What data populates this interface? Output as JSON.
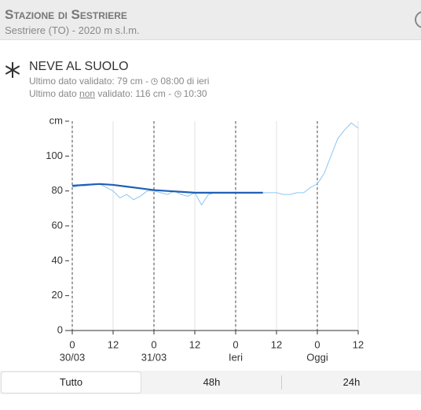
{
  "header": {
    "title": "Stazione di Sestriere",
    "subtitle": "Sestriere (TO) - 2020 m s.l.m."
  },
  "section": {
    "title": "NEVE AL SUOLO",
    "line1": {
      "text": "Ultimo dato validato: 79 cm - ",
      "time": "08:00 di ieri"
    },
    "line2": {
      "prefix": "Ultimo dato ",
      "underlined": "non",
      "text": " validato: 116 cm - ",
      "time": "10:30"
    }
  },
  "chart_data": {
    "type": "line",
    "grid": true,
    "xlim": [
      0,
      84
    ],
    "xticks": [
      0,
      12,
      {
        "value": 24,
        "label": "0"
      },
      {
        "value": 36,
        "label": "12"
      },
      {
        "value": 48,
        "label": "0"
      },
      {
        "value": 60,
        "label": "12"
      },
      {
        "value": 72,
        "label": "0"
      },
      {
        "value": 84,
        "label": "12"
      }
    ],
    "x_day_labels": [
      {
        "value": 0,
        "label": "30/03"
      },
      {
        "value": 24,
        "label": "31/03"
      },
      {
        "value": 48,
        "label": "Ieri"
      },
      {
        "value": 72,
        "label": "Oggi"
      }
    ],
    "ylim": [
      0,
      120
    ],
    "yticks": [
      0,
      20,
      40,
      60,
      80,
      100,
      {
        "value": 120,
        "label": "cm"
      }
    ],
    "series": [
      {
        "color": "#8cc6f2",
        "width": 1,
        "x": [
          0,
          2,
          4,
          6,
          8,
          10,
          12,
          14,
          16,
          18,
          20,
          22,
          24,
          26,
          28,
          30,
          32,
          34,
          36,
          38,
          40,
          42,
          44,
          46,
          48,
          50,
          52,
          54,
          56,
          58,
          60,
          62,
          64,
          66,
          68,
          70,
          72,
          74,
          76,
          78,
          80,
          82,
          84
        ],
        "values": [
          82,
          83,
          83,
          84,
          84,
          82,
          80,
          76,
          78,
          75,
          77,
          80,
          80,
          79,
          78,
          80,
          78,
          77,
          79,
          72,
          78,
          79,
          79,
          79,
          79,
          79,
          79,
          79,
          79,
          79,
          79,
          78,
          78,
          79,
          79,
          82,
          84,
          90,
          100,
          110,
          115,
          119,
          116
        ]
      },
      {
        "color": "#1f5fb4",
        "width": 2.2,
        "x": [
          0,
          4,
          8,
          12,
          16,
          20,
          24,
          28,
          32,
          36,
          40,
          44,
          48,
          52,
          56
        ],
        "values": [
          83,
          83.5,
          84,
          83.5,
          82.5,
          81.5,
          80.5,
          80,
          79.5,
          79,
          79,
          79,
          79,
          79,
          79
        ]
      }
    ]
  },
  "tabs": [
    "Tutto",
    "48h",
    "24h"
  ]
}
